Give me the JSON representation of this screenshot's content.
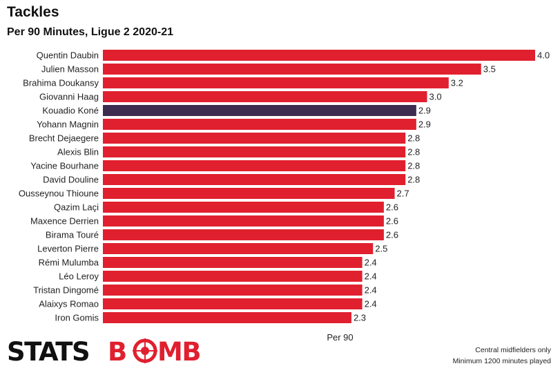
{
  "header": {
    "title": "Tackles",
    "subtitle": "Per 90 Minutes, Ligue 2 2020-21"
  },
  "footer": {
    "brand": "STATSBOMB",
    "note_line1": "Central midfielders only",
    "note_line2": "Minimum 1200 minutes played"
  },
  "colors": {
    "bar": "#e0202e",
    "highlight": "#3d2b50"
  },
  "chart_data": {
    "type": "bar",
    "orientation": "horizontal",
    "xlabel": "Per 90",
    "xlim": [
      0,
      4.0
    ],
    "grid": false,
    "categories": [
      "Quentin Daubin",
      "Julien Masson",
      "Brahima Doukansy",
      "Giovanni Haag",
      "Kouadio Koné",
      "Yohann Magnin",
      "Brecht Dejaegere",
      "Alexis Blin",
      "Yacine Bourhane",
      "David Douline",
      "Ousseynou Thioune",
      "Qazim Laçi",
      "Maxence Derrien",
      "Birama Touré",
      "Leverton Pierre",
      "Rémi Mulumba",
      "Léo Leroy",
      "Tristan Dingomé",
      "Alaixys Romao",
      "Iron Gomis"
    ],
    "values": [
      4.0,
      3.5,
      3.2,
      3.0,
      2.9,
      2.9,
      2.8,
      2.8,
      2.8,
      2.8,
      2.7,
      2.6,
      2.6,
      2.6,
      2.5,
      2.4,
      2.4,
      2.4,
      2.4,
      2.3
    ],
    "highlighted": "Kouadio Koné"
  }
}
